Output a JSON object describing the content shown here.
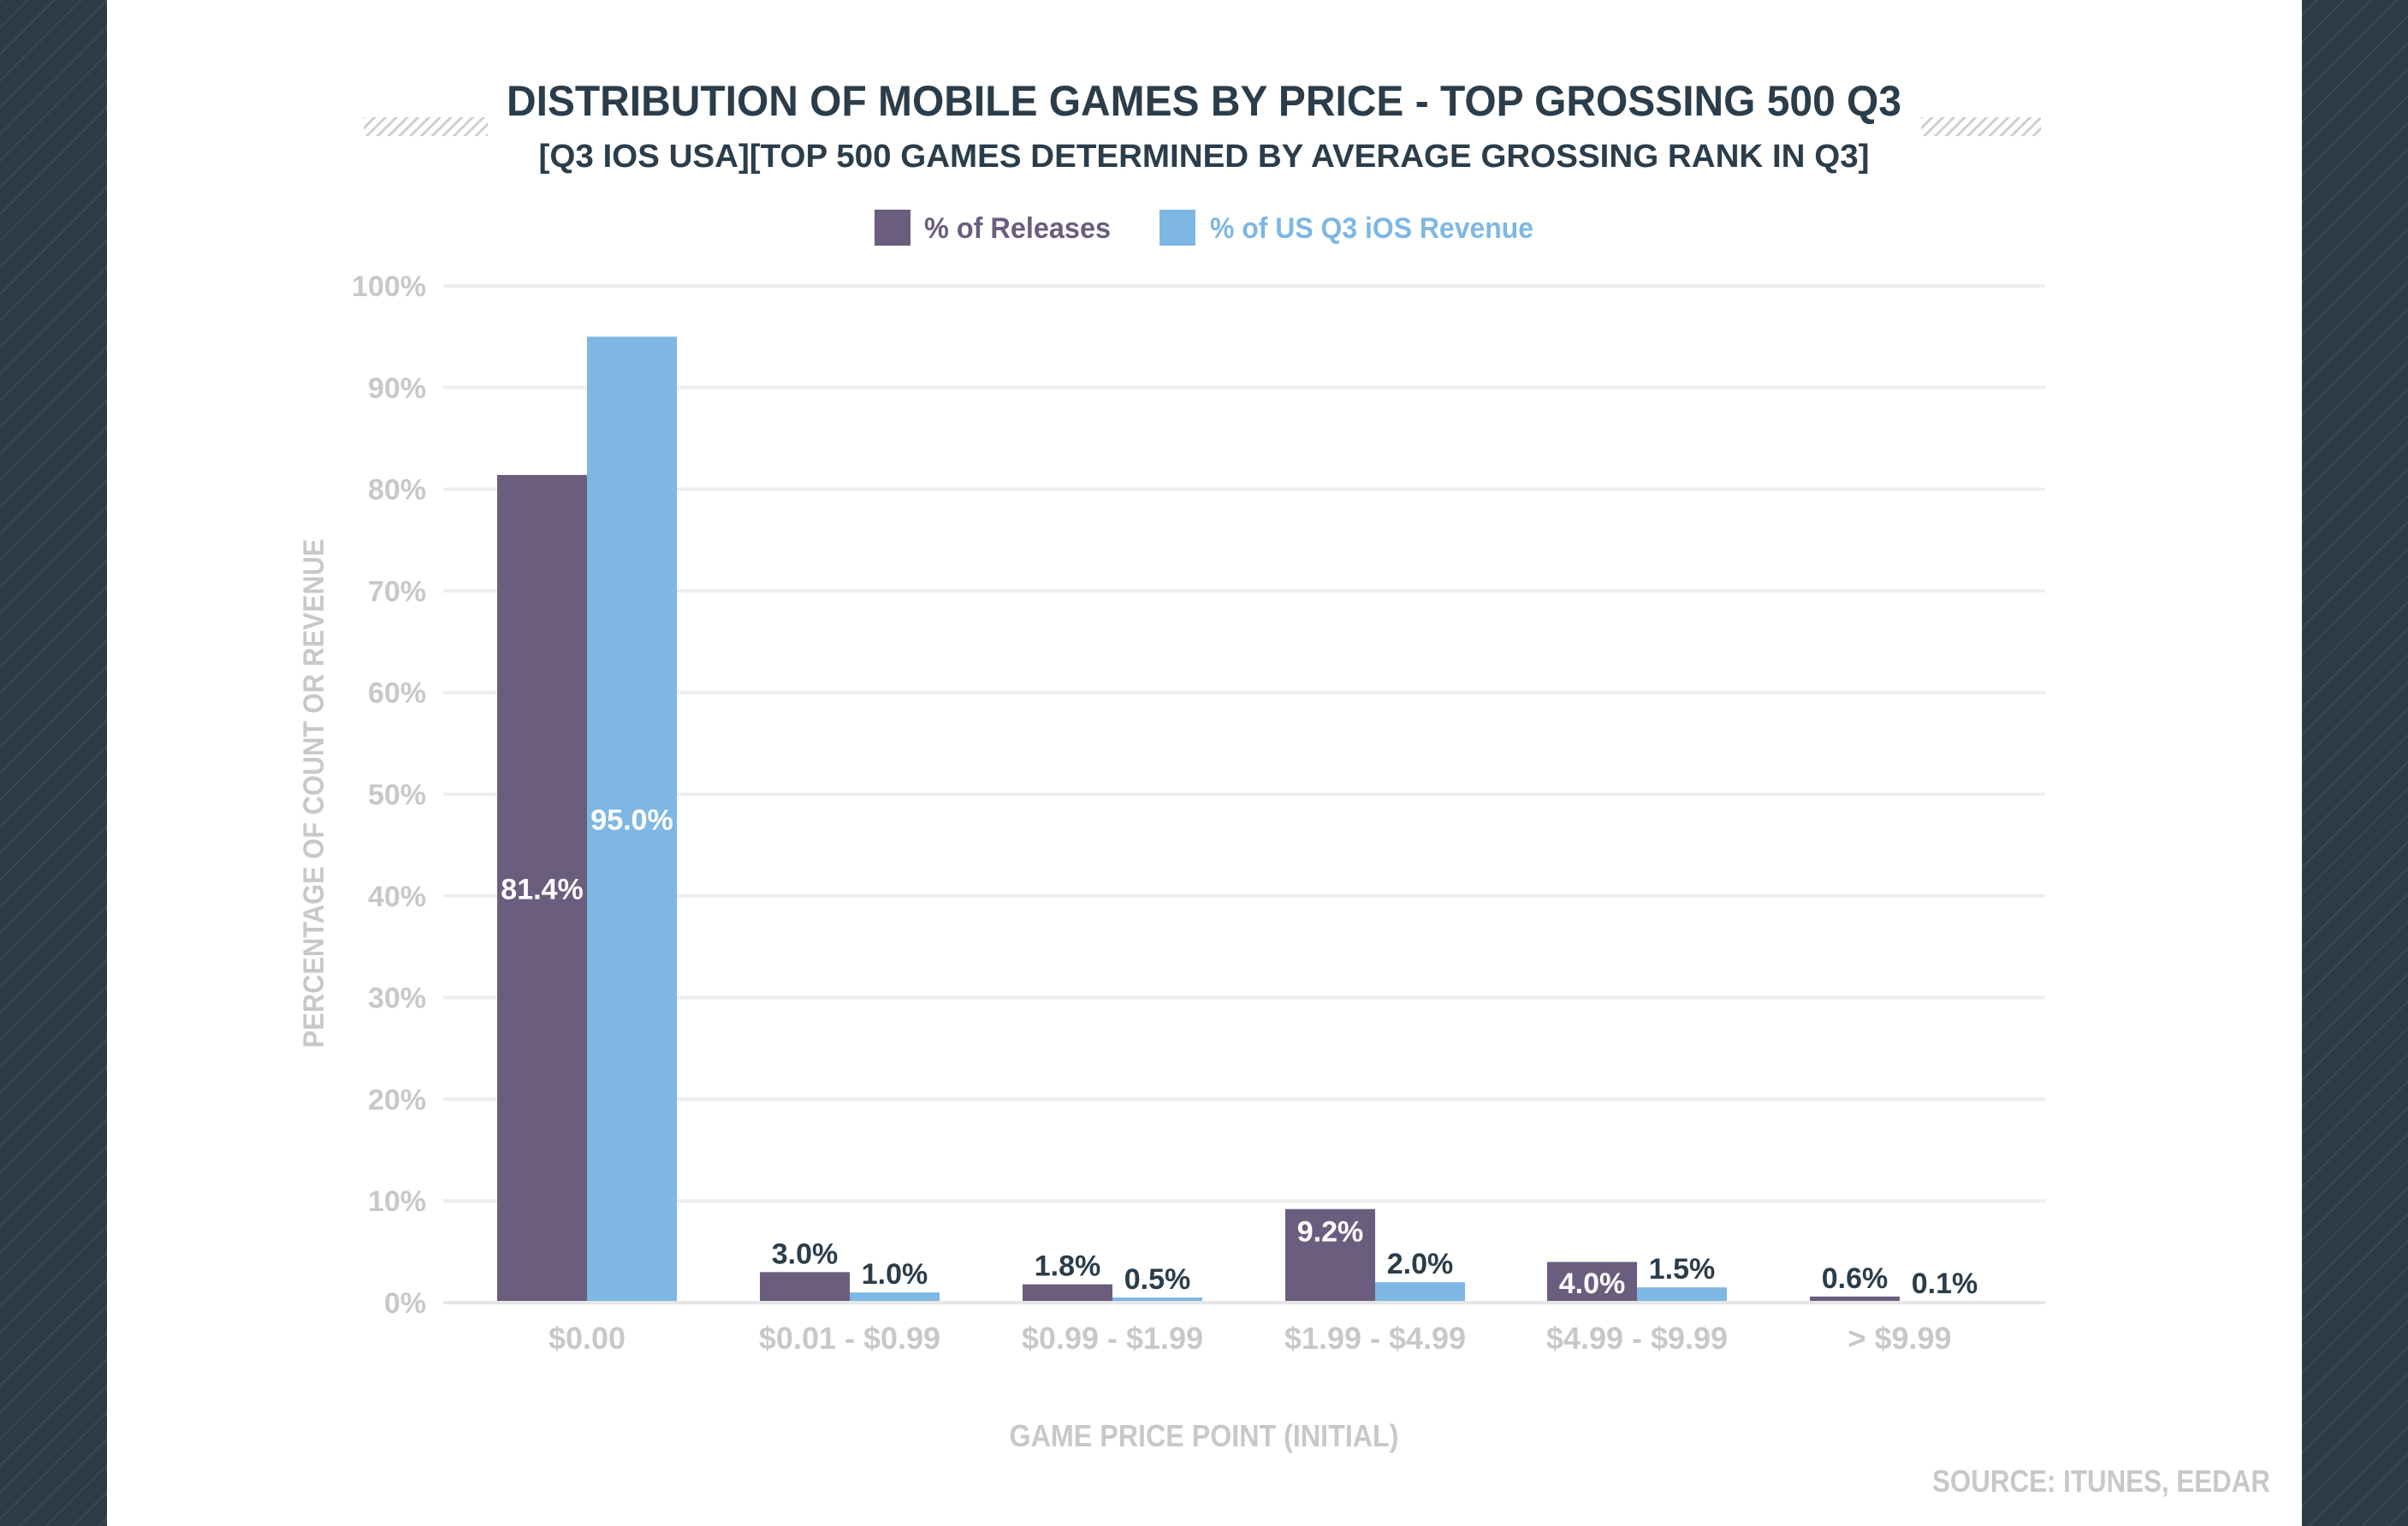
{
  "colors": {
    "background": "#2c3b44",
    "panel": "#ffffff",
    "title": "#2b3d4a",
    "releases": "#6a5d7d",
    "revenue": "#7eb7e3",
    "axis_text": "#c8c8c8",
    "grid": "#eeeeee"
  },
  "chart_data": {
    "type": "bar",
    "title": "DISTRIBUTION OF MOBILE GAMES BY PRICE - TOP GROSSING 500 Q3",
    "subtitle": "[Q3 IOS USA][TOP 500 GAMES DETERMINED BY AVERAGE GROSSING RANK IN Q3]",
    "xlabel": "GAME PRICE POINT (INITIAL)",
    "ylabel": "PERCENTAGE OF COUNT OR REVENUE",
    "categories": [
      "$0.00",
      "$0.01 - $0.99",
      "$0.99 - $1.99",
      "$1.99 - $4.99",
      "$4.99 - $9.99",
      "> $9.99"
    ],
    "series": [
      {
        "name": "% of Releases",
        "values": [
          81.4,
          3.0,
          1.8,
          9.2,
          4.0,
          0.6
        ],
        "labels": [
          "81.4%",
          "3.0%",
          "1.8%",
          "9.2%",
          "4.0%",
          "0.6%"
        ]
      },
      {
        "name": "% of US Q3 iOS Revenue",
        "values": [
          95.0,
          1.0,
          0.5,
          2.0,
          1.5,
          0.1
        ],
        "labels": [
          "95.0%",
          "1.0%",
          "0.5%",
          "2.0%",
          "1.5%",
          "0.1%"
        ]
      }
    ],
    "ylim": [
      0,
      100
    ],
    "yticks": [
      0,
      10,
      20,
      30,
      40,
      50,
      60,
      70,
      80,
      90,
      100
    ],
    "ytick_labels": [
      "0%",
      "10%",
      "20%",
      "30%",
      "40%",
      "50%",
      "60%",
      "70%",
      "80%",
      "90%",
      "100%"
    ],
    "grid": true,
    "legend_position": "top-center"
  },
  "source_note": "SOURCE: ITUNES, EEDAR"
}
